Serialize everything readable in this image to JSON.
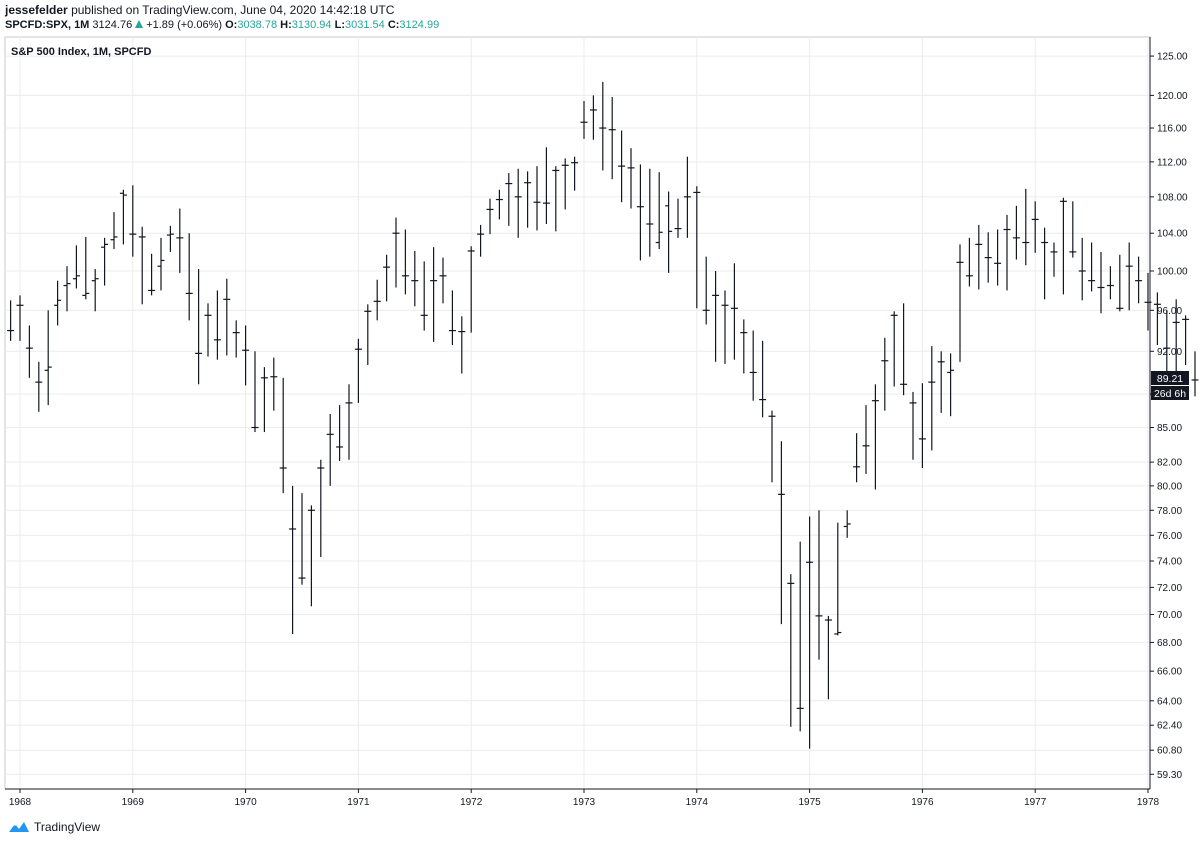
{
  "header": {
    "author": "jessefelder",
    "published": "published on TradingView.com, June 04, 2020 14:42:18 UTC",
    "symbol": "SPCFD:SPX, 1M",
    "price": "3124.76",
    "change": "+1.89 (+0.06%)",
    "o_label": "O:",
    "o_value": "3038.78",
    "h_label": "H:",
    "h_value": "3130.94",
    "l_label": "L:",
    "l_value": "3031.54",
    "c_label": "C:",
    "c_value": "3124.99"
  },
  "footer": {
    "brand": "TradingView",
    "logo_icon": "tradingview-logo-icon"
  },
  "colors": {
    "bars": "#131722",
    "grid": "#ececec",
    "up": "#26a69a",
    "tag_bg": "#131722",
    "tag_text": "#ffffff"
  },
  "chart_data": {
    "type": "ohlc",
    "title": "S&P 500 Index, 1M, SPCFD",
    "x_ticks": [
      "1968",
      "1969",
      "1970",
      "1971",
      "1972",
      "1973",
      "1974",
      "1975",
      "1976",
      "1977",
      "1978"
    ],
    "y_ticks": [
      "59.30",
      "60.80",
      "62.40",
      "64.00",
      "66.00",
      "68.00",
      "70.00",
      "72.00",
      "74.00",
      "76.00",
      "78.00",
      "80.00",
      "82.00",
      "85.00",
      "88.00",
      "92.00",
      "96.00",
      "100.00",
      "104.00",
      "108.00",
      "112.00",
      "116.00",
      "120.00",
      "125.00"
    ],
    "scale": "log",
    "ylim": [
      58.4,
      127.5
    ],
    "current_price_label": "89.21",
    "countdown_label": "26d 6h",
    "grid": true,
    "bars": [
      {
        "t": "1967-12",
        "o": 94.0,
        "h": 97.0,
        "l": 93.0,
        "c": 94.0
      },
      {
        "t": "1968-01",
        "o": 96.5,
        "h": 97.5,
        "l": 93.0,
        "c": 96.5
      },
      {
        "t": "1968-02",
        "o": 92.3,
        "h": 94.5,
        "l": 89.5,
        "c": 92.3
      },
      {
        "t": "1968-03",
        "o": 89.1,
        "h": 91.0,
        "l": 86.4,
        "c": 89.1
      },
      {
        "t": "1968-04",
        "o": 90.2,
        "h": 96.0,
        "l": 87.0,
        "c": 90.5
      },
      {
        "t": "1968-05",
        "o": 96.5,
        "h": 99.0,
        "l": 94.5,
        "c": 97.0
      },
      {
        "t": "1968-06",
        "o": 98.5,
        "h": 100.5,
        "l": 95.9,
        "c": 98.7
      },
      {
        "t": "1968-07",
        "o": 99.2,
        "h": 102.7,
        "l": 98.2,
        "c": 99.5
      },
      {
        "t": "1968-08",
        "o": 97.5,
        "h": 103.6,
        "l": 97.1,
        "c": 97.7
      },
      {
        "t": "1968-09",
        "o": 99.0,
        "h": 100.2,
        "l": 95.9,
        "c": 99.2
      },
      {
        "t": "1968-10",
        "o": 102.5,
        "h": 103.5,
        "l": 98.5,
        "c": 102.8
      },
      {
        "t": "1968-11",
        "o": 103.3,
        "h": 106.3,
        "l": 102.3,
        "c": 103.6
      },
      {
        "t": "1968-12",
        "o": 108.4,
        "h": 108.8,
        "l": 102.8,
        "c": 108.2
      },
      {
        "t": "1969-01",
        "o": 103.9,
        "h": 109.3,
        "l": 101.5,
        "c": 103.9
      },
      {
        "t": "1969-02",
        "o": 103.6,
        "h": 104.7,
        "l": 96.6,
        "c": 103.6
      },
      {
        "t": "1969-03",
        "o": 98.0,
        "h": 101.8,
        "l": 97.5,
        "c": 98.0
      },
      {
        "t": "1969-04",
        "o": 100.5,
        "h": 103.5,
        "l": 98.0,
        "c": 101.1
      },
      {
        "t": "1969-05",
        "o": 103.8,
        "h": 104.8,
        "l": 102.0,
        "c": 103.9
      },
      {
        "t": "1969-06",
        "o": 103.5,
        "h": 106.7,
        "l": 99.8,
        "c": 103.5
      },
      {
        "t": "1969-07",
        "o": 97.7,
        "h": 104.0,
        "l": 95.0,
        "c": 97.7
      },
      {
        "t": "1969-08",
        "o": 91.8,
        "h": 100.2,
        "l": 88.9,
        "c": 91.8
      },
      {
        "t": "1969-09",
        "o": 95.5,
        "h": 96.7,
        "l": 91.5,
        "c": 95.5
      },
      {
        "t": "1969-10",
        "o": 93.1,
        "h": 98.0,
        "l": 91.2,
        "c": 93.1
      },
      {
        "t": "1969-11",
        "o": 97.1,
        "h": 99.2,
        "l": 91.6,
        "c": 97.1
      },
      {
        "t": "1969-12",
        "o": 93.8,
        "h": 95.0,
        "l": 91.4,
        "c": 93.8
      },
      {
        "t": "1970-01",
        "o": 92.1,
        "h": 94.5,
        "l": 88.8,
        "c": 92.1
      },
      {
        "t": "1970-02",
        "o": 85.0,
        "h": 92.0,
        "l": 84.6,
        "c": 85.0
      },
      {
        "t": "1970-03",
        "o": 89.5,
        "h": 90.5,
        "l": 84.6,
        "c": 89.5
      },
      {
        "t": "1970-04",
        "o": 89.6,
        "h": 91.4,
        "l": 86.5,
        "c": 89.6
      },
      {
        "t": "1970-05",
        "o": 81.5,
        "h": 89.5,
        "l": 79.4,
        "c": 81.5
      },
      {
        "t": "1970-06",
        "o": 76.5,
        "h": 80.0,
        "l": 68.6,
        "c": 76.5
      },
      {
        "t": "1970-07",
        "o": 72.7,
        "h": 79.4,
        "l": 72.2,
        "c": 72.7
      },
      {
        "t": "1970-08",
        "o": 78.0,
        "h": 78.4,
        "l": 70.6,
        "c": 78.0
      },
      {
        "t": "1970-09",
        "o": 81.5,
        "h": 82.2,
        "l": 74.3,
        "c": 81.5
      },
      {
        "t": "1970-10",
        "o": 84.4,
        "h": 86.2,
        "l": 80.0,
        "c": 84.4
      },
      {
        "t": "1970-11",
        "o": 83.3,
        "h": 87.0,
        "l": 82.1,
        "c": 83.3
      },
      {
        "t": "1970-12",
        "o": 87.2,
        "h": 88.9,
        "l": 82.2,
        "c": 87.2
      },
      {
        "t": "1971-01",
        "o": 92.2,
        "h": 93.2,
        "l": 87.2,
        "c": 92.2
      },
      {
        "t": "1971-02",
        "o": 95.9,
        "h": 96.6,
        "l": 90.7,
        "c": 95.9
      },
      {
        "t": "1971-03",
        "o": 96.9,
        "h": 99.1,
        "l": 95.0,
        "c": 96.9
      },
      {
        "t": "1971-04",
        "o": 100.4,
        "h": 101.7,
        "l": 96.9,
        "c": 100.4
      },
      {
        "t": "1971-05",
        "o": 104.0,
        "h": 105.7,
        "l": 98.3,
        "c": 104.0
      },
      {
        "t": "1971-06",
        "o": 99.5,
        "h": 104.4,
        "l": 97.6,
        "c": 99.5
      },
      {
        "t": "1971-07",
        "o": 99.0,
        "h": 102.1,
        "l": 96.4,
        "c": 99.0
      },
      {
        "t": "1971-08",
        "o": 95.5,
        "h": 101.0,
        "l": 94.0,
        "c": 95.5
      },
      {
        "t": "1971-09",
        "o": 99.0,
        "h": 102.5,
        "l": 92.9,
        "c": 99.0
      },
      {
        "t": "1971-10",
        "o": 99.5,
        "h": 101.4,
        "l": 96.7,
        "c": 99.5
      },
      {
        "t": "1971-11",
        "o": 94.0,
        "h": 98.0,
        "l": 92.6,
        "c": 94.0
      },
      {
        "t": "1971-12",
        "o": 93.9,
        "h": 95.4,
        "l": 89.9,
        "c": 93.9
      },
      {
        "t": "1972-01",
        "o": 102.1,
        "h": 102.6,
        "l": 93.8,
        "c": 102.1
      },
      {
        "t": "1972-02",
        "o": 103.9,
        "h": 104.9,
        "l": 101.5,
        "c": 103.9
      },
      {
        "t": "1972-03",
        "o": 106.6,
        "h": 107.8,
        "l": 103.9,
        "c": 106.6
      },
      {
        "t": "1972-04",
        "o": 107.7,
        "h": 108.8,
        "l": 105.5,
        "c": 107.7
      },
      {
        "t": "1972-05",
        "o": 109.5,
        "h": 110.7,
        "l": 104.8,
        "c": 109.5
      },
      {
        "t": "1972-06",
        "o": 108.0,
        "h": 111.2,
        "l": 103.5,
        "c": 108.0
      },
      {
        "t": "1972-07",
        "o": 109.6,
        "h": 110.9,
        "l": 104.6,
        "c": 109.6
      },
      {
        "t": "1972-08",
        "o": 107.4,
        "h": 111.5,
        "l": 104.3,
        "c": 107.4
      },
      {
        "t": "1972-09",
        "o": 107.3,
        "h": 113.7,
        "l": 105.0,
        "c": 107.3
      },
      {
        "t": "1972-10",
        "o": 111.0,
        "h": 111.5,
        "l": 104.2,
        "c": 111.0
      },
      {
        "t": "1972-11",
        "o": 111.6,
        "h": 112.4,
        "l": 106.6,
        "c": 111.6
      },
      {
        "t": "1972-12",
        "o": 111.9,
        "h": 112.6,
        "l": 108.7,
        "c": 111.9
      },
      {
        "t": "1973-01",
        "o": 116.7,
        "h": 119.3,
        "l": 114.7,
        "c": 116.7
      },
      {
        "t": "1973-02",
        "o": 118.2,
        "h": 120.0,
        "l": 114.6,
        "c": 118.2
      },
      {
        "t": "1973-03",
        "o": 116.0,
        "h": 121.7,
        "l": 111.0,
        "c": 116.0
      },
      {
        "t": "1973-04",
        "o": 115.8,
        "h": 119.8,
        "l": 110.0,
        "c": 115.8
      },
      {
        "t": "1973-05",
        "o": 111.5,
        "h": 115.7,
        "l": 107.4,
        "c": 111.5
      },
      {
        "t": "1973-06",
        "o": 111.3,
        "h": 113.6,
        "l": 106.7,
        "c": 111.3
      },
      {
        "t": "1973-07",
        "o": 106.9,
        "h": 111.7,
        "l": 101.1,
        "c": 106.9
      },
      {
        "t": "1973-08",
        "o": 105.0,
        "h": 111.2,
        "l": 101.5,
        "c": 105.0
      },
      {
        "t": "1973-09",
        "o": 103.0,
        "h": 110.8,
        "l": 102.3,
        "c": 104.1
      },
      {
        "t": "1973-10",
        "o": 107.0,
        "h": 108.6,
        "l": 99.8,
        "c": 104.2
      },
      {
        "t": "1973-11",
        "o": 104.5,
        "h": 107.8,
        "l": 103.5,
        "c": 104.5
      },
      {
        "t": "1973-12",
        "o": 108.0,
        "h": 112.6,
        "l": 103.5,
        "c": 108.0
      },
      {
        "t": "1974-01",
        "o": 108.5,
        "h": 109.2,
        "l": 96.2,
        "c": 108.5
      },
      {
        "t": "1974-02",
        "o": 96.0,
        "h": 101.5,
        "l": 94.6,
        "c": 96.0
      },
      {
        "t": "1974-03",
        "o": 97.5,
        "h": 100.0,
        "l": 91.0,
        "c": 97.5
      },
      {
        "t": "1974-04",
        "o": 96.5,
        "h": 98.0,
        "l": 90.8,
        "c": 96.5
      },
      {
        "t": "1974-05",
        "o": 96.2,
        "h": 100.8,
        "l": 91.2,
        "c": 96.2
      },
      {
        "t": "1974-06",
        "o": 93.8,
        "h": 95.1,
        "l": 89.9,
        "c": 93.8
      },
      {
        "t": "1974-07",
        "o": 90.0,
        "h": 94.0,
        "l": 87.4,
        "c": 90.0
      },
      {
        "t": "1974-08",
        "o": 87.5,
        "h": 93.0,
        "l": 85.9,
        "c": 87.5
      },
      {
        "t": "1974-09",
        "o": 86.0,
        "h": 86.5,
        "l": 80.3,
        "c": 86.0
      },
      {
        "t": "1974-10",
        "o": 79.3,
        "h": 83.8,
        "l": 69.3,
        "c": 79.3
      },
      {
        "t": "1974-11",
        "o": 72.3,
        "h": 73.0,
        "l": 62.3,
        "c": 72.3
      },
      {
        "t": "1974-12",
        "o": 63.5,
        "h": 75.5,
        "l": 62.0,
        "c": 63.5
      },
      {
        "t": "1975-01",
        "o": 73.9,
        "h": 77.5,
        "l": 60.9,
        "c": 73.9
      },
      {
        "t": "1975-02",
        "o": 69.9,
        "h": 78.0,
        "l": 66.8,
        "c": 69.9
      },
      {
        "t": "1975-03",
        "o": 69.6,
        "h": 69.9,
        "l": 64.1,
        "c": 69.6
      },
      {
        "t": "1975-04",
        "o": 68.6,
        "h": 77.0,
        "l": 68.5,
        "c": 68.7
      },
      {
        "t": "1975-05",
        "o": 76.7,
        "h": 78.0,
        "l": 75.8,
        "c": 76.9
      },
      {
        "t": "1975-06",
        "o": 81.6,
        "h": 84.5,
        "l": 80.3,
        "c": 81.6
      },
      {
        "t": "1975-07",
        "o": 83.4,
        "h": 87.0,
        "l": 81.0,
        "c": 83.4
      },
      {
        "t": "1975-08",
        "o": 87.4,
        "h": 88.9,
        "l": 79.7,
        "c": 87.4
      },
      {
        "t": "1975-09",
        "o": 91.1,
        "h": 93.3,
        "l": 86.5,
        "c": 91.1
      },
      {
        "t": "1975-10",
        "o": 95.5,
        "h": 95.9,
        "l": 88.7,
        "c": 95.5
      },
      {
        "t": "1975-11",
        "o": 88.9,
        "h": 96.7,
        "l": 87.9,
        "c": 88.9
      },
      {
        "t": "1975-12",
        "o": 87.2,
        "h": 88.2,
        "l": 82.2,
        "c": 87.2
      },
      {
        "t": "1976-01",
        "o": 84.0,
        "h": 89.0,
        "l": 81.5,
        "c": 84.0
      },
      {
        "t": "1976-02",
        "o": 89.1,
        "h": 92.5,
        "l": 83.0,
        "c": 89.1
      },
      {
        "t": "1976-03",
        "o": 91.0,
        "h": 92.0,
        "l": 86.3,
        "c": 91.0
      },
      {
        "t": "1976-04",
        "o": 90.0,
        "h": 91.8,
        "l": 86.0,
        "c": 90.2
      },
      {
        "t": "1976-05",
        "o": 100.9,
        "h": 102.8,
        "l": 91.0,
        "c": 100.9
      },
      {
        "t": "1976-06",
        "o": 99.5,
        "h": 103.5,
        "l": 98.4,
        "c": 99.5
      },
      {
        "t": "1976-07",
        "o": 102.8,
        "h": 104.9,
        "l": 98.1,
        "c": 102.8
      },
      {
        "t": "1976-08",
        "o": 101.4,
        "h": 104.1,
        "l": 98.8,
        "c": 101.4
      },
      {
        "t": "1976-09",
        "o": 100.8,
        "h": 104.4,
        "l": 98.5,
        "c": 100.8
      },
      {
        "t": "1976-10",
        "o": 104.4,
        "h": 106.0,
        "l": 98.0,
        "c": 104.4
      },
      {
        "t": "1976-11",
        "o": 103.5,
        "h": 107.0,
        "l": 101.2,
        "c": 103.5
      },
      {
        "t": "1976-12",
        "o": 103.0,
        "h": 108.9,
        "l": 100.6,
        "c": 103.0
      },
      {
        "t": "1977-01",
        "o": 105.5,
        "h": 107.5,
        "l": 101.9,
        "c": 105.5
      },
      {
        "t": "1977-02",
        "o": 103.0,
        "h": 104.6,
        "l": 97.1,
        "c": 103.0
      },
      {
        "t": "1977-03",
        "o": 102.0,
        "h": 103.0,
        "l": 99.4,
        "c": 102.0
      },
      {
        "t": "1977-04",
        "o": 107.5,
        "h": 107.9,
        "l": 97.6,
        "c": 107.5
      },
      {
        "t": "1977-05",
        "o": 102.0,
        "h": 107.5,
        "l": 101.4,
        "c": 102.0
      },
      {
        "t": "1977-06",
        "o": 100.0,
        "h": 103.5,
        "l": 97.0,
        "c": 100.0
      },
      {
        "t": "1977-07",
        "o": 99.0,
        "h": 103.0,
        "l": 97.9,
        "c": 99.0
      },
      {
        "t": "1977-08",
        "o": 98.3,
        "h": 102.0,
        "l": 95.7,
        "c": 98.3
      },
      {
        "t": "1977-09",
        "o": 98.5,
        "h": 100.5,
        "l": 97.1,
        "c": 98.5
      },
      {
        "t": "1977-10",
        "o": 96.2,
        "h": 101.7,
        "l": 95.9,
        "c": 96.2
      },
      {
        "t": "1977-11",
        "o": 100.5,
        "h": 103.0,
        "l": 96.0,
        "c": 100.5
      },
      {
        "t": "1977-12",
        "o": 99.0,
        "h": 101.5,
        "l": 96.7,
        "c": 99.0
      },
      {
        "t": "1978-01",
        "o": 96.8,
        "h": 99.8,
        "l": 94.0,
        "c": 96.8
      },
      {
        "t": "1978-02",
        "o": 96.6,
        "h": 97.8,
        "l": 92.6,
        "c": 96.6
      },
      {
        "t": "1978-03",
        "o": 92.3,
        "h": 96.0,
        "l": 89.9,
        "c": 92.3
      },
      {
        "t": "1978-04",
        "o": 94.8,
        "h": 97.1,
        "l": 90.0,
        "c": 94.8
      },
      {
        "t": "1978-05",
        "o": 95.1,
        "h": 95.5,
        "l": 90.7,
        "c": 95.1
      },
      {
        "t": "1978-06",
        "o": 89.3,
        "h": 92.0,
        "l": 87.8,
        "c": 89.3
      },
      {
        "t": "1978-07",
        "o": 88.0,
        "h": 91.2,
        "l": 86.8,
        "c": 89.21
      }
    ]
  }
}
